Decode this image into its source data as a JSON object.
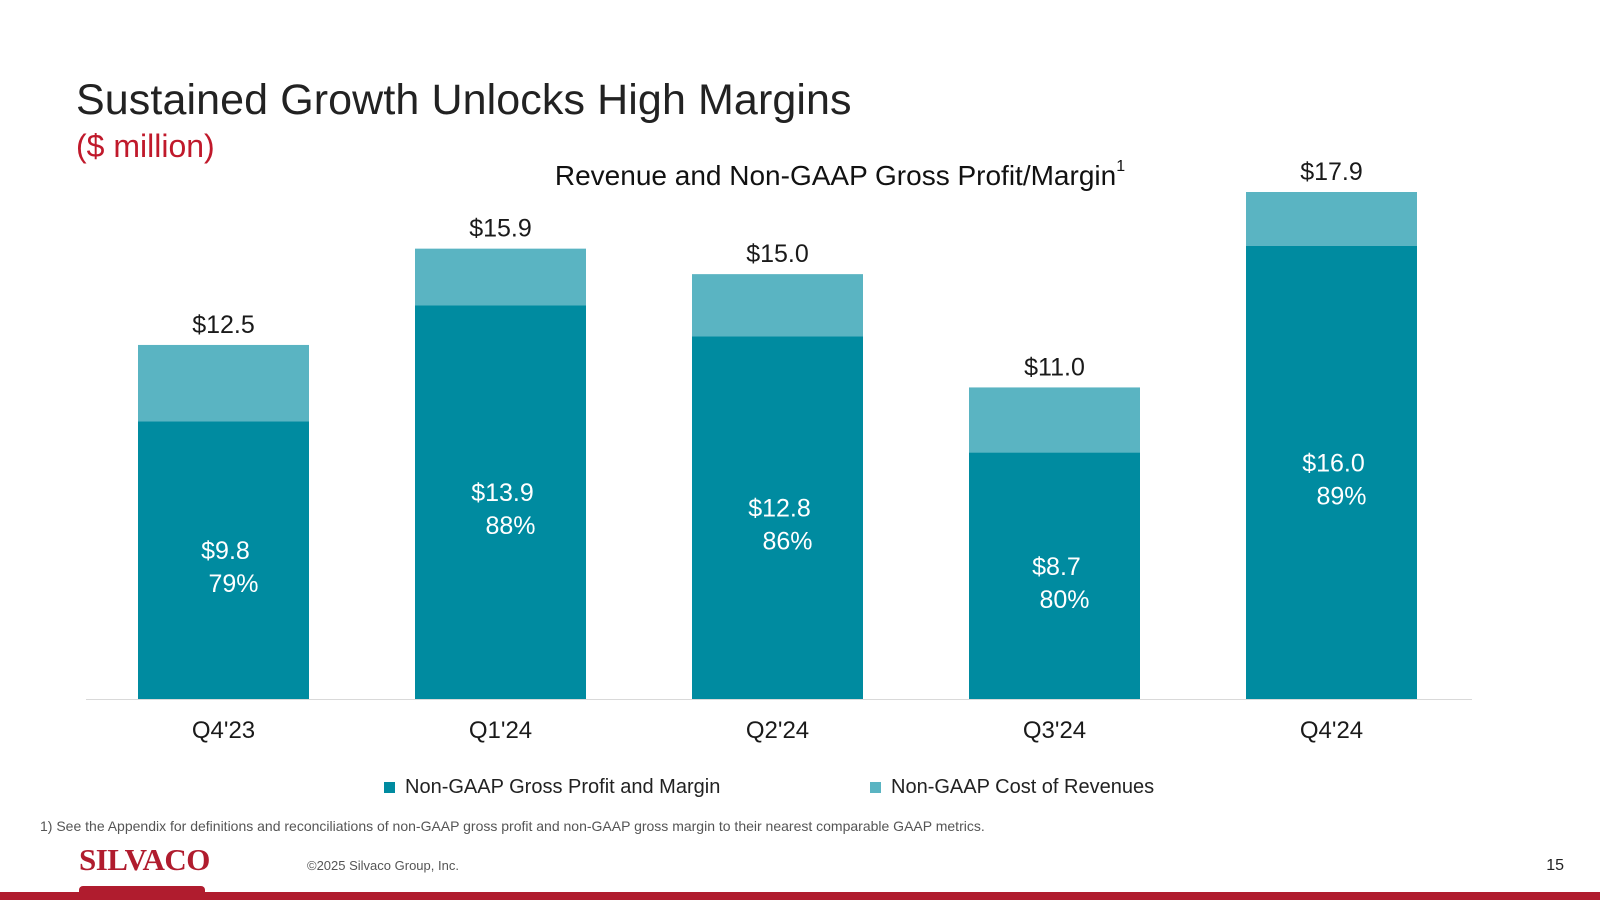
{
  "slide": {
    "title": "Sustained Growth Unlocks High Margins",
    "subtitle": "($ million)",
    "footnote": "1)  See the Appendix for definitions and reconciliations of non-GAAP gross profit and  non-GAAP gross margin to their nearest comparable GAAP metrics.",
    "logo_text": "SILVACO",
    "copyright": "©2025 Silvaco Group, Inc.",
    "page_number": "15"
  },
  "chart_data": {
    "type": "bar",
    "stacked": true,
    "title": "Revenue and Non-GAAP Gross Profit/Margin",
    "title_superscript": "1",
    "categories": [
      "Q4'23",
      "Q1'24",
      "Q2'24",
      "Q3'24",
      "Q4'24"
    ],
    "series": [
      {
        "name": "Non-GAAP Gross Profit and Margin",
        "color": "#008ba0",
        "values": [
          9.8,
          13.9,
          12.8,
          8.7,
          16.0
        ],
        "value_labels": [
          "$9.8",
          "$13.9",
          "$12.8",
          "$8.7",
          "$16.0"
        ],
        "margin_labels": [
          "79%",
          "88%",
          "86%",
          "80%",
          "89%"
        ]
      },
      {
        "name": "Non-GAAP Cost of Revenues",
        "color": "#5ab4c2",
        "values": [
          2.7,
          2.0,
          2.2,
          2.3,
          1.9
        ]
      }
    ],
    "totals": [
      12.5,
      15.9,
      15.0,
      11.0,
      17.9
    ],
    "total_labels": [
      "$12.5",
      "$15.9",
      "$15.0",
      "$11.0",
      "$17.9"
    ],
    "ylim": [
      0,
      17.9
    ],
    "xlabel": "",
    "ylabel": "",
    "grid": false,
    "legend_position": "bottom"
  }
}
